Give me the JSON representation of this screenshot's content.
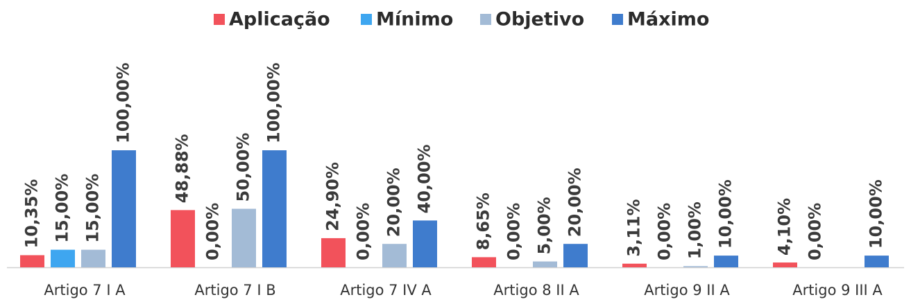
{
  "chart_data": {
    "type": "bar",
    "categories": [
      "Artigo 7 I A",
      "Artigo 7 I B",
      "Artigo 7 IV A",
      "Artigo 8 II A",
      "Artigo 9 II A",
      "Artigo 9 III A"
    ],
    "series": [
      {
        "name": "Aplicação",
        "color": "#f2525b",
        "values": [
          10.35,
          48.88,
          24.9,
          8.65,
          3.11,
          4.1
        ],
        "value_labels": [
          "10,35%",
          "48,88%",
          "24,90%",
          "8,65%",
          "3,11%",
          "4,10%"
        ]
      },
      {
        "name": "Mínimo",
        "color": "#3ea6f0",
        "values": [
          15,
          0,
          0,
          0,
          0,
          0
        ],
        "value_labels": [
          "15,00%",
          "0,00%",
          "0,00%",
          "0,00%",
          "0,00%",
          "0,00%"
        ]
      },
      {
        "name": "Objetivo",
        "color": "#a3bbd6",
        "values": [
          15,
          50,
          20,
          5,
          1,
          null
        ],
        "value_labels": [
          "15,00%",
          "50,00%",
          "20,00%",
          "5,00%",
          "1,00%",
          null
        ]
      },
      {
        "name": "Máximo",
        "color": "#3f7ccd",
        "values": [
          100,
          100,
          40,
          20,
          10,
          10
        ],
        "value_labels": [
          "100,00%",
          "100,00%",
          "40,00%",
          "20,00%",
          "10,00%",
          "10,00%"
        ]
      }
    ],
    "legend": "top"
  }
}
